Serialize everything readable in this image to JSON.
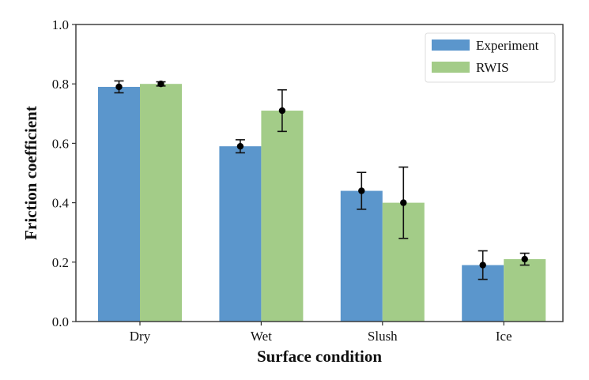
{
  "chart_data": {
    "type": "bar",
    "title": "",
    "xlabel": "Surface condition",
    "ylabel": "Friction coefficient",
    "categories": [
      "Dry",
      "Wet",
      "Slush",
      "Ice"
    ],
    "ylim": [
      0,
      1.0
    ],
    "yticks": [
      0.0,
      0.2,
      0.4,
      0.6,
      0.8,
      1.0
    ],
    "ytick_labels": [
      "0.0",
      "0.2",
      "0.4",
      "0.6",
      "0.8",
      "1.0"
    ],
    "grid": false,
    "legend_position": "top-right",
    "series": [
      {
        "name": "Experiment",
        "color": "#5b96cc",
        "values": [
          0.79,
          0.59,
          0.44,
          0.19
        ],
        "errors": [
          0.02,
          0.022,
          0.062,
          0.048
        ]
      },
      {
        "name": "RWIS",
        "color": "#a3cc88",
        "values": [
          0.8,
          0.71,
          0.4,
          0.21
        ],
        "errors": [
          0.007,
          0.07,
          0.12,
          0.02
        ]
      }
    ]
  }
}
